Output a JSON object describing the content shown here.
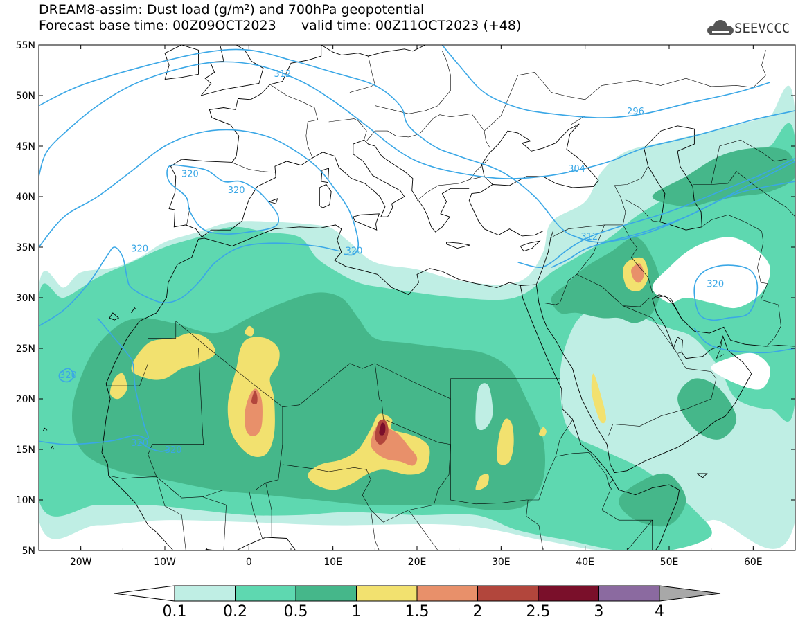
{
  "header": {
    "line1": "DREAM8-assim: Dust load (g/m²) and 700hPa geopotential",
    "line2_base": "Forecast base time: 00Z09OCT2023",
    "line2_valid": "valid time: 00Z11OCT2023 (+48)",
    "logo_text": "SEEVCCC",
    "logo_icon": "cloud-logo-icon"
  },
  "map": {
    "lon_range": [
      -25,
      65
    ],
    "lat_range": [
      5,
      55
    ],
    "lat_labels": [
      "5N",
      "10N",
      "15N",
      "20N",
      "25N",
      "30N",
      "35N",
      "40N",
      "45N",
      "50N",
      "55N"
    ],
    "lon_labels": [
      "20W",
      "10W",
      "0",
      "10E",
      "20E",
      "30E",
      "40E",
      "50E",
      "60E"
    ],
    "contour_labels": [
      {
        "text": "312",
        "lon": 4,
        "lat": 52.2
      },
      {
        "text": "296",
        "lon": 46,
        "lat": 48.5
      },
      {
        "text": "304",
        "lon": 39,
        "lat": 42.8
      },
      {
        "text": "312",
        "lon": 40.5,
        "lat": 36.1
      },
      {
        "text": "320",
        "lon": -7,
        "lat": 42.3
      },
      {
        "text": "320",
        "lon": -1.5,
        "lat": 40.7
      },
      {
        "text": "320",
        "lon": -13,
        "lat": 34.9
      },
      {
        "text": "320",
        "lon": 12.5,
        "lat": 34.7
      },
      {
        "text": "320",
        "lon": 55.5,
        "lat": 31.4
      },
      {
        "text": "320",
        "lon": -21.5,
        "lat": 22.4
      },
      {
        "text": "320",
        "lon": -13,
        "lat": 15.7
      },
      {
        "text": "320",
        "lon": -9,
        "lat": 15.0
      }
    ],
    "colors": {
      "c0_1": "#bfeee4",
      "c0_2": "#5ed8b0",
      "c0_5": "#45b78a",
      "c1": "#f2e16f",
      "c1_5": "#e8906a",
      "c2": "#b2463c",
      "c2_5": "#7a0f2a",
      "c3": "#8b6aa0",
      "c4": "#a8a8a8",
      "contour": "#3aa7e6"
    }
  },
  "colorbar": {
    "labels": [
      "0.1",
      "0.2",
      "0.5",
      "1",
      "1.5",
      "2",
      "2.5",
      "3",
      "4"
    ]
  }
}
